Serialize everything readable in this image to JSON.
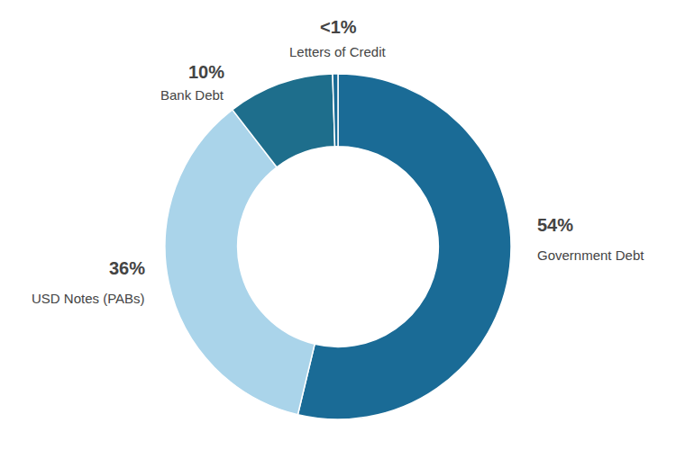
{
  "chart_data": {
    "type": "donut",
    "categories": [
      "Government Debt",
      "USD Notes (PABs)",
      "Bank Debt",
      "Letters of Credit"
    ],
    "values": [
      54,
      36,
      10,
      0.5
    ],
    "value_labels": [
      "54%",
      "36%",
      "10%",
      "<1%"
    ],
    "colors": [
      "#1a6b96",
      "#aad4ea",
      "#1e6e8c",
      "#1a6b96"
    ]
  }
}
